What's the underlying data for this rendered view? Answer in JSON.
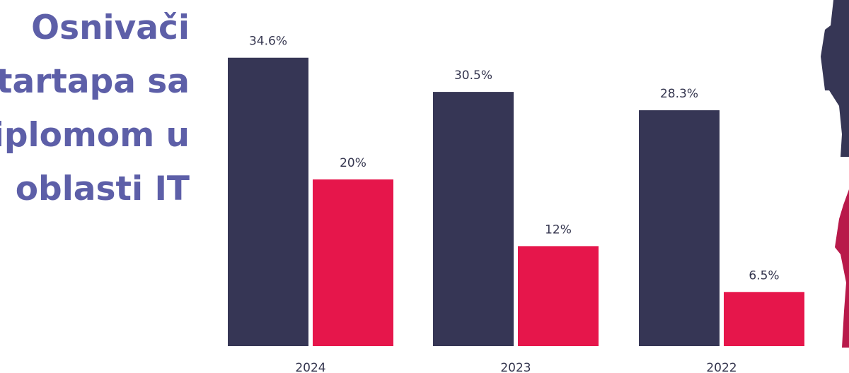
{
  "chart_data": {
    "type": "bar",
    "title_lines": [
      "Osnivači",
      "tartapa sa",
      "iplomom u",
      "oblasti IT"
    ],
    "categories": [
      "2024",
      "2023",
      "2022"
    ],
    "series": [
      {
        "color": "#363655",
        "values": [
          34.6,
          30.5,
          28.3
        ],
        "value_labels": [
          "34.6%",
          "30.5%",
          "28.3%"
        ]
      },
      {
        "color": "#e6164b",
        "values": [
          20,
          12,
          6.5
        ],
        "value_labels": [
          "20%",
          "12%",
          "6.5%"
        ]
      }
    ],
    "ylim": [
      0,
      35
    ]
  }
}
